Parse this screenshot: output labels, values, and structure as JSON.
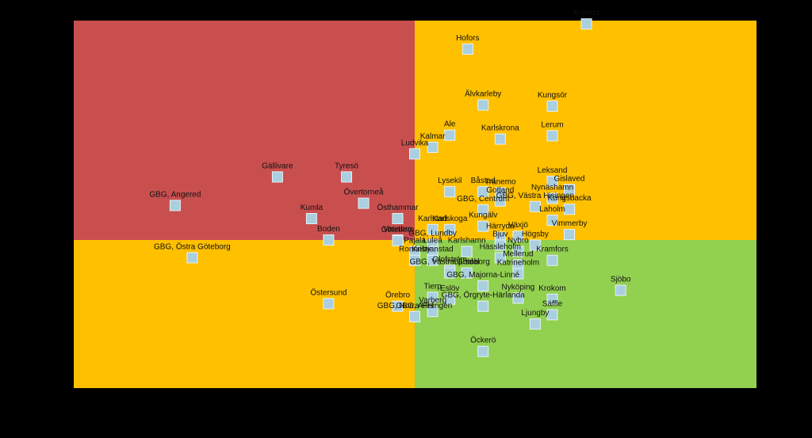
{
  "chart_data": {
    "type": "scatter",
    "title": "",
    "xlabel": "",
    "ylabel": "",
    "xlim": [
      -4,
      4
    ],
    "ylim": [
      -4,
      4
    ],
    "grid": false,
    "quadrants": [
      {
        "name": "top-left",
        "color": "#c94f4f"
      },
      {
        "name": "top-right",
        "color": "#ffc000"
      },
      {
        "name": "bottom-left",
        "color": "#ffc000"
      },
      {
        "name": "bottom-right",
        "color": "#92d050"
      }
    ],
    "points": [
      {
        "label": "Knivsta",
        "x": 2.01,
        "y": 3.94
      },
      {
        "label": "Hofors",
        "x": 0.62,
        "y": 3.48
      },
      {
        "label": "Älvkarleby",
        "x": 0.8,
        "y": 2.46
      },
      {
        "label": "Kungsör",
        "x": 1.61,
        "y": 2.44
      },
      {
        "label": "Lerum",
        "x": 1.61,
        "y": 1.9
      },
      {
        "label": "Ale",
        "x": 0.41,
        "y": 1.91
      },
      {
        "label": "Kalmar",
        "x": 0.21,
        "y": 1.69
      },
      {
        "label": "Karlskrona",
        "x": 1.0,
        "y": 1.84
      },
      {
        "label": "Ludvika",
        "x": 0.0,
        "y": 1.57
      },
      {
        "label": "Gällivare",
        "x": -1.61,
        "y": 1.15
      },
      {
        "label": "Tyresö",
        "x": -0.8,
        "y": 1.15
      },
      {
        "label": "Övertorneå",
        "x": -0.6,
        "y": 0.67
      },
      {
        "label": "GBG, Angered",
        "x": -2.81,
        "y": 0.63
      },
      {
        "label": "Kumla",
        "x": -1.21,
        "y": 0.39
      },
      {
        "label": "Östhammar",
        "x": -0.2,
        "y": 0.39
      },
      {
        "label": "Boden",
        "x": -1.01,
        "y": 0.0
      },
      {
        "label": "Vansbro",
        "x": -0.2,
        "y": 0.0
      },
      {
        "label": "Karlstad",
        "x": 0.21,
        "y": 0.19
      },
      {
        "label": "Karlskoga",
        "x": 0.41,
        "y": 0.19
      },
      {
        "label": "Lysekil",
        "x": 0.41,
        "y": 0.88
      },
      {
        "label": "Båstad",
        "x": 0.8,
        "y": 0.88
      },
      {
        "label": "Tranemo",
        "x": 1.0,
        "y": 0.86
      },
      {
        "label": "Gislaved",
        "x": 1.81,
        "y": 0.92
      },
      {
        "label": "Leksand",
        "x": 1.61,
        "y": 1.07
      },
      {
        "label": "Nynäshamn",
        "x": 1.61,
        "y": 0.76
      },
      {
        "label": "Gotland",
        "x": 1.0,
        "y": 0.71
      },
      {
        "label": "GBG, Centrum",
        "x": 0.8,
        "y": 0.55
      },
      {
        "label": "GBG, Västra Hisingen",
        "x": 1.41,
        "y": 0.61
      },
      {
        "label": "Kungsbacka",
        "x": 1.81,
        "y": 0.56
      },
      {
        "label": "Laholm",
        "x": 1.61,
        "y": 0.36
      },
      {
        "label": "Kungälv",
        "x": 0.8,
        "y": 0.25
      },
      {
        "label": "Vimmerby",
        "x": 1.81,
        "y": 0.1
      },
      {
        "label": "Göteborg",
        "x": -0.2,
        "y": -0.02
      },
      {
        "label": "Härryda",
        "x": 1.0,
        "y": 0.05
      },
      {
        "label": "Växjö",
        "x": 1.21,
        "y": 0.07
      },
      {
        "label": "GBG, Lundby",
        "x": 0.21,
        "y": -0.12
      },
      {
        "label": "Bjuv",
        "x": 1.0,
        "y": -0.14
      },
      {
        "label": "Högsby",
        "x": 1.41,
        "y": -0.14
      },
      {
        "label": "Pajala",
        "x": 0.0,
        "y": -0.31
      },
      {
        "label": "Luleå",
        "x": 0.21,
        "y": -0.31
      },
      {
        "label": "Karlshamn",
        "x": 0.61,
        "y": -0.31
      },
      {
        "label": "Nybro",
        "x": 1.21,
        "y": -0.31
      },
      {
        "label": "Kramfors",
        "x": 1.61,
        "y": -0.55
      },
      {
        "label": "GBG, Östra Göteborg",
        "x": -2.61,
        "y": -0.48
      },
      {
        "label": "Ronneby",
        "x": 0.0,
        "y": -0.55
      },
      {
        "label": "Kristianstad",
        "x": 0.21,
        "y": -0.55
      },
      {
        "label": "Hässleholm",
        "x": 1.0,
        "y": -0.48
      },
      {
        "label": "Mellerud",
        "x": 1.21,
        "y": -0.67
      },
      {
        "label": "Olofström",
        "x": 0.41,
        "y": -0.82
      },
      {
        "label": "Ljusdal",
        "x": 0.61,
        "y": -0.89
      },
      {
        "label": "GBG, Västra Göteborg",
        "x": 0.41,
        "y": -0.89
      },
      {
        "label": "Katrineholm",
        "x": 1.21,
        "y": -0.91
      },
      {
        "label": "GBG, Majorna-Linné",
        "x": 0.8,
        "y": -1.24
      },
      {
        "label": "Sjöbo",
        "x": 2.41,
        "y": -1.36
      },
      {
        "label": "Tierp",
        "x": 0.21,
        "y": -1.55
      },
      {
        "label": "Östersund",
        "x": -1.01,
        "y": -1.72
      },
      {
        "label": "Örebro",
        "x": -0.2,
        "y": -1.79
      },
      {
        "label": "Eslöv",
        "x": 0.41,
        "y": -1.6
      },
      {
        "label": "Nyköping",
        "x": 1.21,
        "y": -1.57
      },
      {
        "label": "Krokom",
        "x": 1.61,
        "y": -1.6
      },
      {
        "label": "GBG, Örgryte-Härlanda",
        "x": 0.8,
        "y": -1.79
      },
      {
        "label": "GBG, Norra Hisingen",
        "x": 0.0,
        "y": -2.07
      },
      {
        "label": "Varberg",
        "x": 0.21,
        "y": -1.93
      },
      {
        "label": "Säffle",
        "x": 1.61,
        "y": -2.02
      },
      {
        "label": "Ljungby",
        "x": 1.41,
        "y": -2.27
      },
      {
        "label": "GBG, AFH",
        "x": 0.0,
        "y": -2.07
      },
      {
        "label": "Öckerö",
        "x": 0.8,
        "y": -3.01
      }
    ]
  }
}
